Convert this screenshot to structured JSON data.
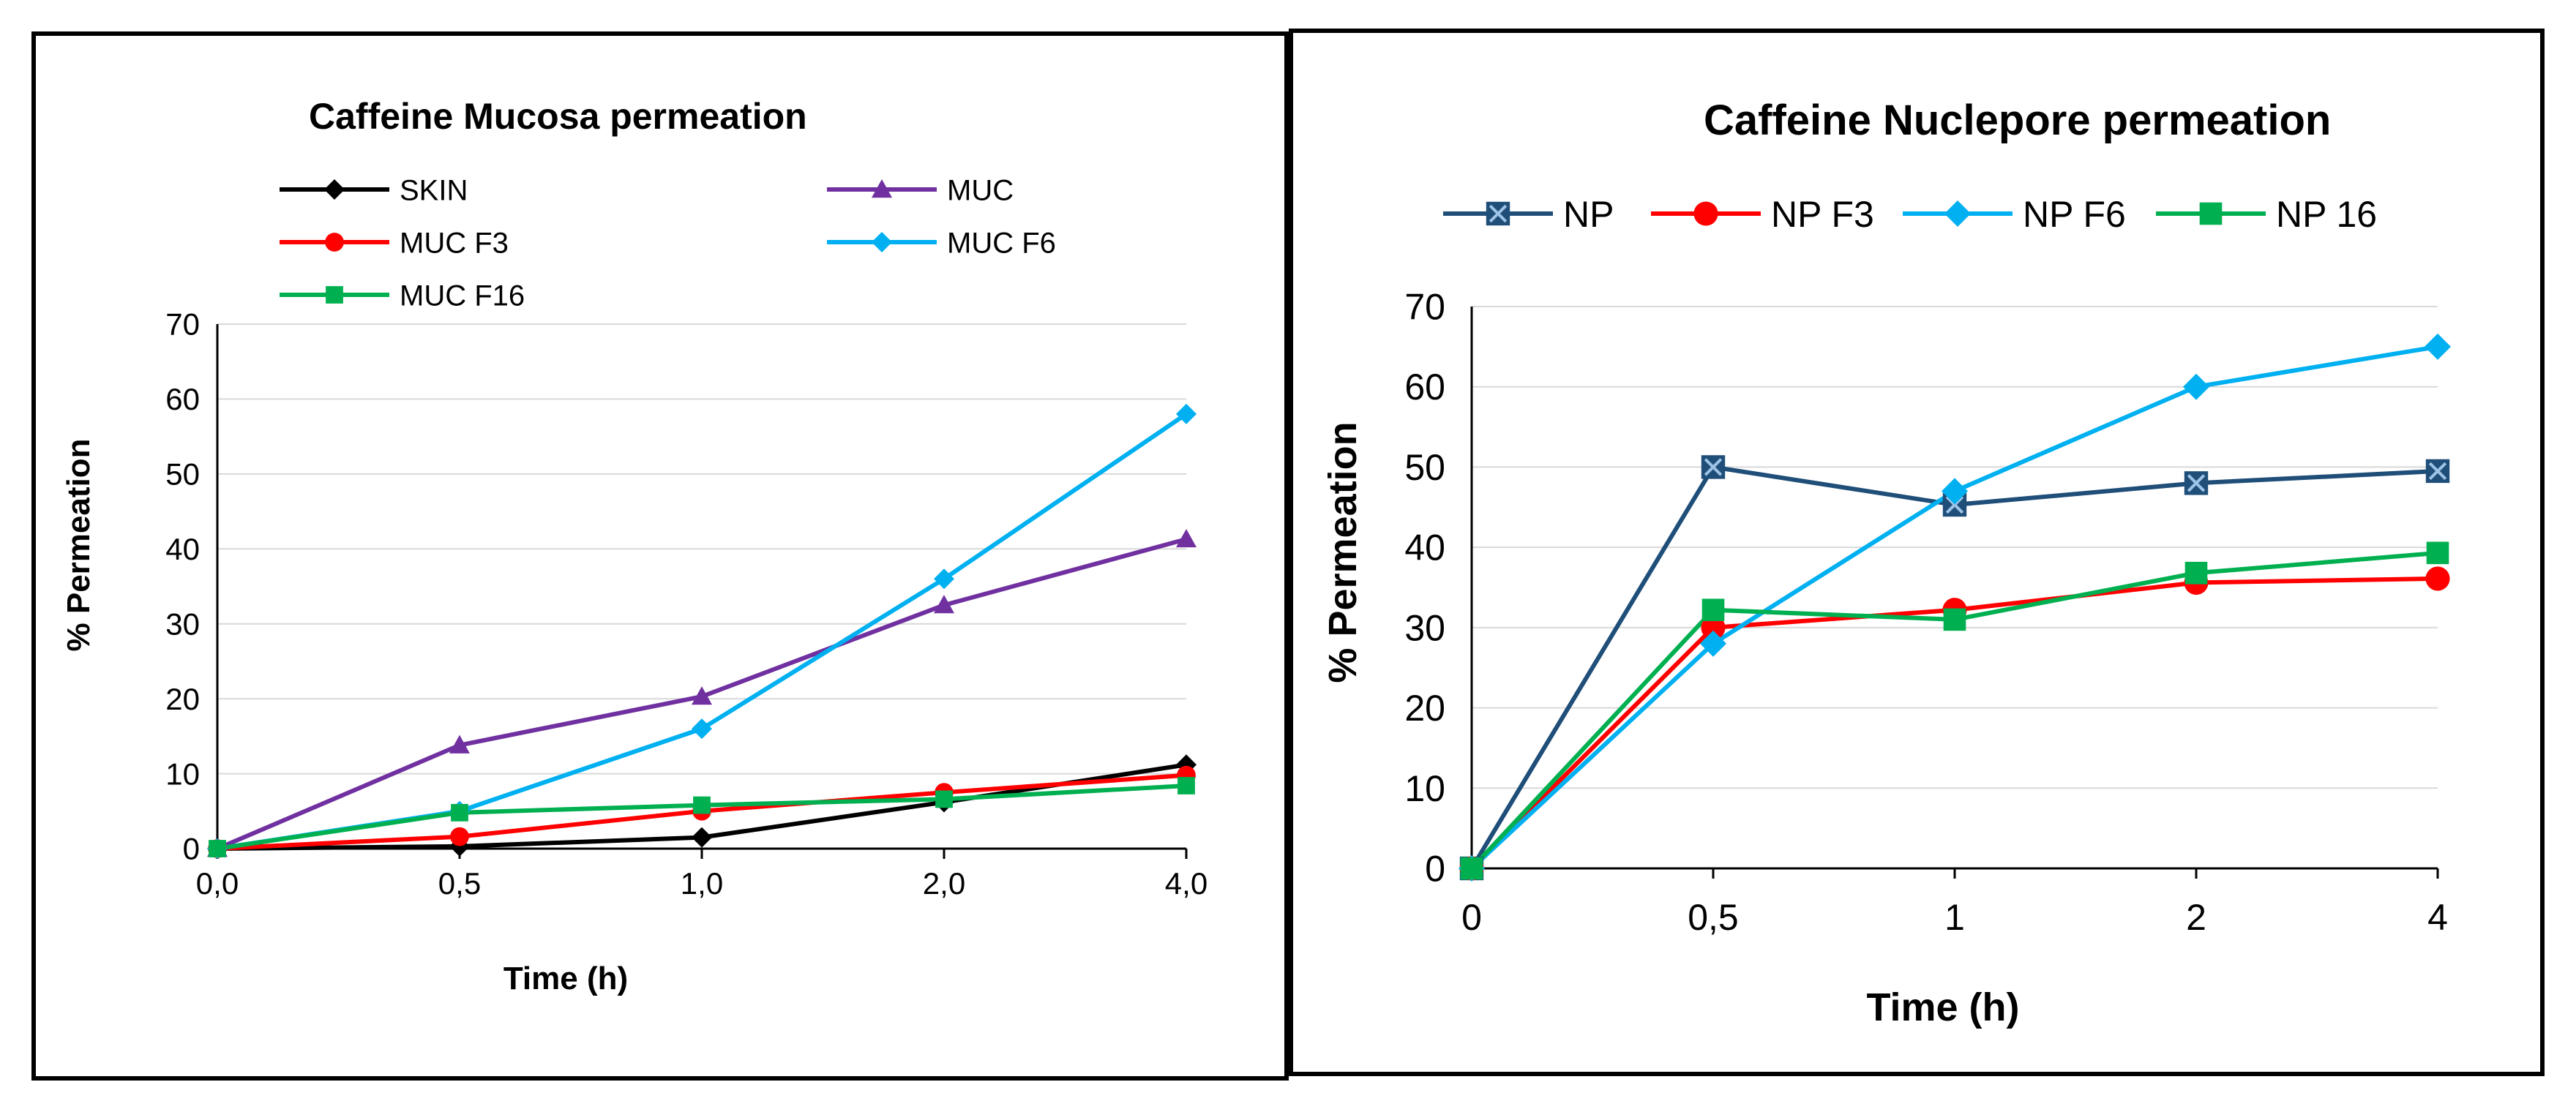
{
  "chart_data": [
    {
      "type": "line",
      "title": "Caffeine Mucosa permeation",
      "xlabel": "Time (h)",
      "ylabel": "% Permeation",
      "categories": [
        "0,0",
        "0,5",
        "1,0",
        "2,0",
        "4,0"
      ],
      "ylim": [
        0,
        70
      ],
      "yticks": [
        0,
        10,
        20,
        30,
        40,
        50,
        60,
        70
      ],
      "grid": true,
      "legend": "top",
      "series": [
        {
          "name": "SKIN",
          "color": "#000000",
          "marker": "diamond",
          "values": [
            0,
            0.3,
            1.5,
            6.2,
            11.2
          ]
        },
        {
          "name": "MUC",
          "color": "#7030a0",
          "marker": "triangle",
          "values": [
            0,
            13.8,
            20.3,
            32.5,
            41.3
          ]
        },
        {
          "name": "MUC F3",
          "color": "#ff0000",
          "marker": "circle",
          "values": [
            0,
            1.6,
            5.0,
            7.5,
            9.8
          ]
        },
        {
          "name": "MUC F6",
          "color": "#00b0f0",
          "marker": "diamond",
          "values": [
            0,
            5.0,
            16.0,
            36.0,
            58.0
          ]
        },
        {
          "name": "MUC F16",
          "color": "#00b050",
          "marker": "square",
          "values": [
            0,
            4.8,
            5.8,
            6.6,
            8.4
          ]
        }
      ]
    },
    {
      "type": "line",
      "title": "Caffeine Nuclepore permeation",
      "xlabel": "Time (h)",
      "ylabel": "% Permeation",
      "categories": [
        "0",
        "0,5",
        "1",
        "2",
        "4"
      ],
      "ylim": [
        0,
        70
      ],
      "yticks": [
        0,
        10,
        20,
        30,
        40,
        50,
        60,
        70
      ],
      "grid": true,
      "legend": "top",
      "series": [
        {
          "name": "NP",
          "color": "#1f4e79",
          "marker": "xsquare",
          "values": [
            0,
            50.0,
            45.3,
            48.0,
            49.5
          ]
        },
        {
          "name": "NP F3",
          "color": "#ff0000",
          "marker": "circle",
          "values": [
            0,
            30.0,
            32.2,
            35.6,
            36.1
          ]
        },
        {
          "name": "NP F6",
          "color": "#00b0f0",
          "marker": "diamond",
          "values": [
            0,
            28.0,
            47.0,
            60.0,
            65.0
          ]
        },
        {
          "name": "NP 16",
          "color": "#00b050",
          "marker": "square",
          "values": [
            0,
            32.2,
            31.0,
            36.8,
            39.3
          ]
        }
      ]
    }
  ]
}
